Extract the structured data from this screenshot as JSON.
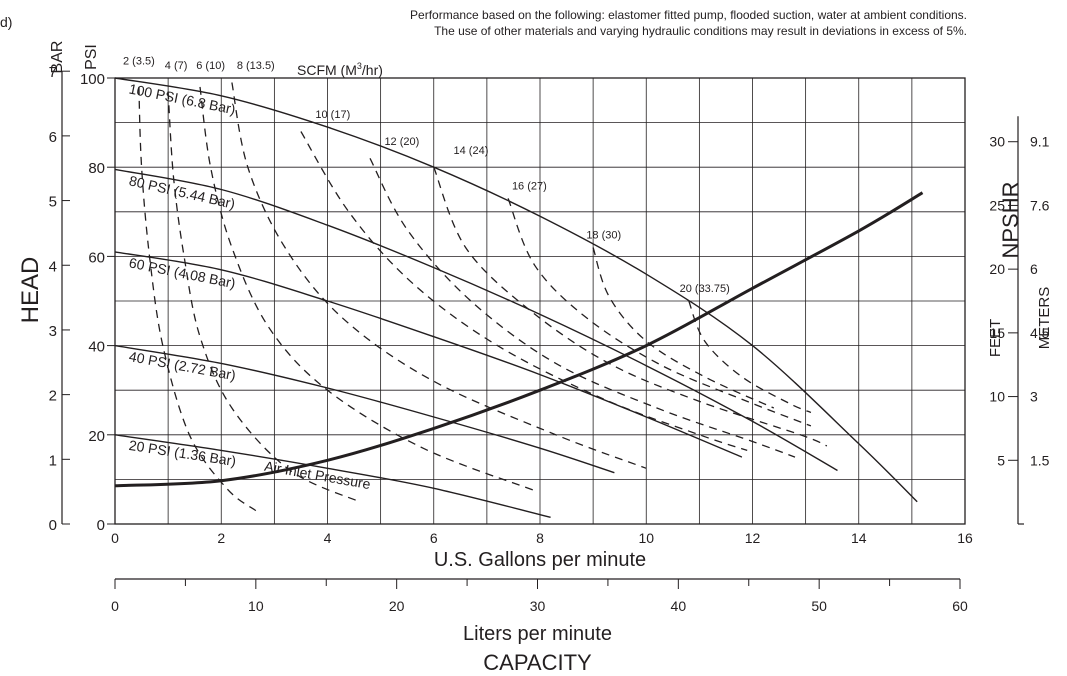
{
  "fragment": "d)",
  "notes": [
    "Performance based on the following: elastomer fitted pump, flooded suction, water at ambient conditions.",
    "The use of other materials and varying hydraulic conditions may result in deviations in excess of 5%."
  ],
  "chart_data": {
    "type": "line",
    "title": "",
    "xlabel": "U.S. Gallons per minute",
    "x2label": "Liters per minute",
    "capacity_label": "CAPACITY",
    "ylabel": "HEAD",
    "y_units": [
      "BAR",
      "PSI"
    ],
    "scfm_label": "SCFM (M",
    "scfm_sup": "3",
    "scfm_tail": "/hr)",
    "npshr_label": "NPSHR",
    "npshr_units": [
      "FEET",
      "METERS"
    ],
    "air_inlet_label": "Air Inlet Pressure",
    "xlim": [
      0,
      16
    ],
    "ylim_psi": [
      0,
      100
    ],
    "grid": true,
    "x_ticks": [
      "0",
      "2",
      "4",
      "6",
      "8",
      "10",
      "12",
      "14",
      "16"
    ],
    "x2_ticks": [
      "0",
      "10",
      "20",
      "30",
      "40",
      "50",
      "60"
    ],
    "psi_ticks": [
      "0",
      "20",
      "40",
      "60",
      "80",
      "100"
    ],
    "bar_ticks": [
      "0",
      "1",
      "2",
      "3",
      "4",
      "5",
      "6",
      "7"
    ],
    "npshr_feet_ticks": [
      "5",
      "10",
      "15",
      "20",
      "25",
      "30"
    ],
    "npshr_meter_ticks": [
      "1.5",
      "3",
      "4.5",
      "6",
      "7.6",
      "9.1"
    ],
    "pressure_curves": [
      {
        "name": "100 PSI (6.8 Bar)",
        "points": [
          [
            0,
            100
          ],
          [
            2,
            96
          ],
          [
            4,
            89
          ],
          [
            6,
            80
          ],
          [
            8,
            69
          ],
          [
            10,
            56
          ],
          [
            12,
            40
          ],
          [
            14,
            18
          ],
          [
            15.1,
            5
          ]
        ]
      },
      {
        "name": "80 PSI (5.44 Bar)",
        "points": [
          [
            0,
            79.5
          ],
          [
            2,
            75
          ],
          [
            4,
            67
          ],
          [
            6,
            57.5
          ],
          [
            8,
            47
          ],
          [
            10,
            35.5
          ],
          [
            12,
            23
          ],
          [
            13.6,
            12
          ]
        ]
      },
      {
        "name": "60 PSI (4.08 Bar)",
        "points": [
          [
            0,
            61
          ],
          [
            2,
            57
          ],
          [
            4,
            50
          ],
          [
            6,
            42
          ],
          [
            8,
            33.5
          ],
          [
            10,
            24
          ],
          [
            11.8,
            15
          ]
        ]
      },
      {
        "name": "40 PSI (2.72 Bar)",
        "points": [
          [
            0,
            40
          ],
          [
            2,
            36
          ],
          [
            4,
            30.5
          ],
          [
            6,
            24
          ],
          [
            8,
            17
          ],
          [
            9.4,
            11.5
          ]
        ]
      },
      {
        "name": "20 PSI (1.36 Bar)",
        "points": [
          [
            0,
            20
          ],
          [
            2,
            16.5
          ],
          [
            4,
            12.5
          ],
          [
            6,
            8
          ],
          [
            8.2,
            1.5
          ]
        ]
      }
    ],
    "scfm_curves": [
      {
        "name": "2 (3.5)",
        "points": [
          [
            0.45,
            98
          ],
          [
            0.5,
            80
          ],
          [
            0.65,
            60
          ],
          [
            0.9,
            40
          ],
          [
            1.4,
            20
          ],
          [
            2.1,
            8
          ],
          [
            2.65,
            3
          ]
        ]
      },
      {
        "name": "4 (7)",
        "points": [
          [
            1.0,
            97
          ],
          [
            1.1,
            78
          ],
          [
            1.3,
            60
          ],
          [
            1.6,
            42
          ],
          [
            2.2,
            26
          ],
          [
            3.3,
            12
          ],
          [
            4.6,
            5
          ]
        ]
      },
      {
        "name": "6 (10)",
        "points": [
          [
            1.6,
            98
          ],
          [
            1.8,
            80
          ],
          [
            2.2,
            62
          ],
          [
            2.9,
            44
          ],
          [
            4.0,
            30
          ],
          [
            5.8,
            17
          ],
          [
            7.9,
            7.5
          ]
        ]
      },
      {
        "name": "8 (13.5)",
        "points": [
          [
            2.2,
            99
          ],
          [
            2.5,
            80
          ],
          [
            3.2,
            62
          ],
          [
            4.3,
            46
          ],
          [
            6.0,
            32
          ],
          [
            8.3,
            20
          ],
          [
            10.0,
            12.5
          ]
        ]
      },
      {
        "name": "10 (17)",
        "points": [
          [
            3.5,
            88
          ],
          [
            4.4,
            70
          ],
          [
            5.6,
            54
          ],
          [
            7.2,
            40
          ],
          [
            9.2,
            28
          ],
          [
            11.0,
            20
          ],
          [
            11.9,
            16.5
          ]
        ]
      },
      {
        "name": "12 (20)",
        "points": [
          [
            4.8,
            82
          ],
          [
            5.5,
            66
          ],
          [
            6.7,
            50
          ],
          [
            8.3,
            36
          ],
          [
            10.2,
            26
          ],
          [
            12.0,
            18.5
          ],
          [
            12.8,
            15
          ]
        ]
      },
      {
        "name": "14 (24)",
        "points": [
          [
            6.0,
            80
          ],
          [
            6.6,
            62
          ],
          [
            7.8,
            48
          ],
          [
            9.3,
            36
          ],
          [
            11.0,
            27.5
          ],
          [
            12.9,
            20
          ],
          [
            13.4,
            17.5
          ]
        ]
      },
      {
        "name": "16 (27)",
        "points": [
          [
            7.4,
            73
          ],
          [
            7.9,
            58
          ],
          [
            8.9,
            46
          ],
          [
            10.3,
            35.5
          ],
          [
            11.9,
            27.5
          ],
          [
            13.1,
            22
          ]
        ]
      },
      {
        "name": "18 (30)",
        "points": [
          [
            9.0,
            62
          ],
          [
            9.3,
            51
          ],
          [
            10.0,
            41
          ],
          [
            11.1,
            33
          ],
          [
            12.4,
            26
          ]
        ]
      },
      {
        "name": "20 (33.75)",
        "points": [
          [
            10.8,
            50
          ],
          [
            11.1,
            41
          ],
          [
            11.8,
            33
          ],
          [
            12.7,
            27
          ],
          [
            13.1,
            25
          ]
        ]
      }
    ],
    "npshr_curve": {
      "points": [
        [
          0,
          3
        ],
        [
          2,
          3.4
        ],
        [
          4,
          5
        ],
        [
          6,
          7.5
        ],
        [
          8,
          10.5
        ],
        [
          10,
          14
        ],
        [
          12,
          18.5
        ],
        [
          14,
          23
        ],
        [
          15.2,
          26
        ]
      ]
    }
  }
}
